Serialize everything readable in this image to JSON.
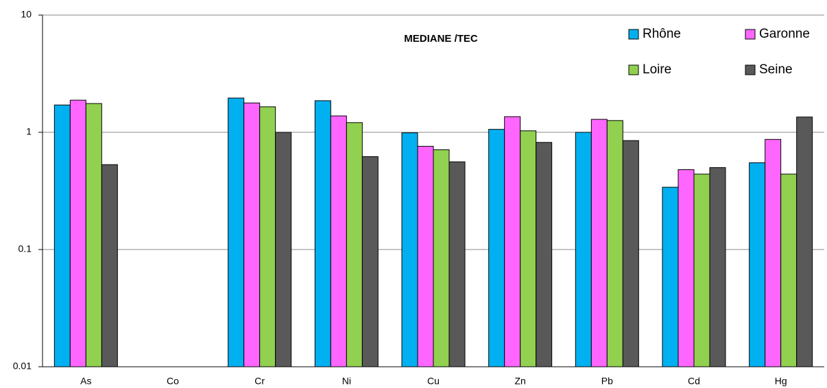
{
  "chart_data": {
    "type": "bar",
    "title": "MEDIANE /TEC",
    "categories": [
      "As",
      "Co",
      "Cr",
      "Ni",
      "Cu",
      "Zn",
      "Pb",
      "Cd",
      "Hg"
    ],
    "series": [
      {
        "name": "Rhône",
        "color": "#00b0f0",
        "values": [
          1.71,
          null,
          1.96,
          1.86,
          0.99,
          1.06,
          1.0,
          0.34,
          0.55
        ]
      },
      {
        "name": "Garonne",
        "color": "#ff66ff",
        "values": [
          1.88,
          null,
          1.78,
          1.38,
          0.76,
          1.36,
          1.29,
          0.48,
          0.87
        ]
      },
      {
        "name": "Loire",
        "color": "#92d050",
        "values": [
          1.76,
          null,
          1.65,
          1.21,
          0.71,
          1.03,
          1.26,
          0.44,
          0.44
        ]
      },
      {
        "name": "Seine",
        "color": "#595959",
        "values": [
          0.53,
          null,
          1.0,
          0.62,
          0.56,
          0.82,
          0.85,
          0.5,
          1.35
        ]
      }
    ],
    "ylim": [
      0.01,
      10
    ],
    "yticks": [
      0.01,
      0.1,
      1,
      10
    ],
    "log_scale": true,
    "grid": true,
    "legend": "top-right"
  }
}
